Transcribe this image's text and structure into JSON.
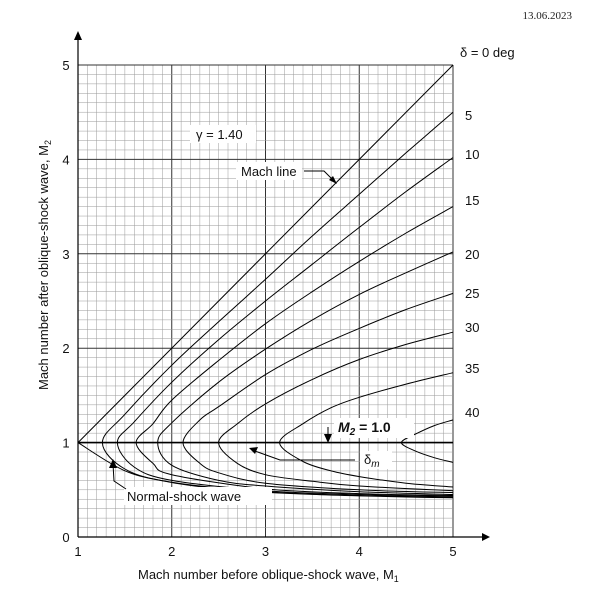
{
  "header": {
    "date": "13.06.2023"
  },
  "chart_data": {
    "type": "line",
    "title": "",
    "xlabel": "Mach number before oblique-shock wave, M",
    "xlabel_sub": "1",
    "ylabel": "Mach number after oblique-shock wave, M",
    "ylabel_sub": "2",
    "xlim": [
      1,
      5
    ],
    "ylim": [
      0,
      5
    ],
    "x_ticks": [
      "1",
      "2",
      "3",
      "4",
      "5"
    ],
    "y_ticks": [
      "0",
      "1",
      "2",
      "3",
      "4",
      "5"
    ],
    "grid": true,
    "minor_grid_per_major": 10,
    "gamma_label": "γ = 1.40",
    "delta_labels": [
      "δ = 0 deg",
      "5",
      "10",
      "15",
      "20",
      "25",
      "30",
      "35",
      "40"
    ],
    "delta_values": [
      0,
      5,
      10,
      15,
      20,
      25,
      30,
      35,
      40
    ],
    "annotations": {
      "mach_line": "Mach line",
      "normal_shock": "Normal-shock wave",
      "m2_label": "M",
      "m2_sub": "2",
      "m2_value": " = 1.0",
      "delta_m": "δ",
      "delta_m_sub": "m"
    },
    "series": [
      {
        "name": "Mach line",
        "kind": "mach_line",
        "x": [
          1,
          5
        ],
        "y": [
          1,
          5
        ]
      },
      {
        "name": "Normal-shock wave",
        "kind": "normal_shock",
        "x": [
          1,
          1.5,
          2,
          2.5,
          3,
          3.5,
          4,
          4.5,
          5
        ],
        "y": [
          1,
          0.701,
          0.577,
          0.513,
          0.475,
          0.451,
          0.435,
          0.424,
          0.415
        ]
      },
      {
        "name": "M2 = 1.0",
        "kind": "sonic",
        "x": [
          1,
          5
        ],
        "y": [
          1,
          1
        ]
      }
    ],
    "deflection_curves": [
      {
        "delta": 5,
        "min_x": 1.26,
        "weak": [
          [
            1.26,
            1
          ],
          [
            1.5,
            1.3
          ],
          [
            2,
            1.82
          ],
          [
            2.5,
            2.28
          ],
          [
            3,
            2.73
          ],
          [
            3.5,
            3.19
          ],
          [
            4,
            3.63
          ],
          [
            4.5,
            4.07
          ],
          [
            5,
            4.5
          ]
        ],
        "strong": [
          [
            1.26,
            1
          ],
          [
            1.5,
            0.72
          ],
          [
            2,
            0.58
          ],
          [
            3,
            0.48
          ],
          [
            4,
            0.44
          ],
          [
            5,
            0.42
          ]
        ]
      },
      {
        "delta": 10,
        "min_x": 1.42,
        "weak": [
          [
            1.42,
            1
          ],
          [
            1.6,
            1.22
          ],
          [
            2,
            1.64
          ],
          [
            2.5,
            2.09
          ],
          [
            3,
            2.5
          ],
          [
            3.5,
            2.89
          ],
          [
            4,
            3.28
          ],
          [
            4.5,
            3.66
          ],
          [
            5,
            4.02
          ]
        ],
        "strong": [
          [
            1.42,
            1
          ],
          [
            1.6,
            0.74
          ],
          [
            2,
            0.6
          ],
          [
            3,
            0.49
          ],
          [
            4,
            0.45
          ],
          [
            5,
            0.43
          ]
        ]
      },
      {
        "delta": 15,
        "min_x": 1.62,
        "weak": [
          [
            1.62,
            1
          ],
          [
            1.8,
            1.2
          ],
          [
            2,
            1.45
          ],
          [
            2.5,
            1.87
          ],
          [
            3,
            2.26
          ],
          [
            3.5,
            2.6
          ],
          [
            4,
            2.92
          ],
          [
            4.5,
            3.22
          ],
          [
            5,
            3.5
          ]
        ],
        "strong": [
          [
            1.62,
            1
          ],
          [
            1.8,
            0.78
          ],
          [
            2,
            0.66
          ],
          [
            3,
            0.51
          ],
          [
            4,
            0.46
          ],
          [
            5,
            0.44
          ]
        ]
      },
      {
        "delta": 20,
        "min_x": 1.85,
        "weak": [
          [
            1.85,
            1
          ],
          [
            2,
            1.21
          ],
          [
            2.5,
            1.64
          ],
          [
            3,
            1.99
          ],
          [
            3.5,
            2.3
          ],
          [
            4,
            2.57
          ],
          [
            4.5,
            2.8
          ],
          [
            5,
            3.02
          ]
        ],
        "strong": [
          [
            1.85,
            1
          ],
          [
            2,
            0.76
          ],
          [
            2.5,
            0.6
          ],
          [
            3,
            0.54
          ],
          [
            4,
            0.48
          ],
          [
            5,
            0.45
          ]
        ]
      },
      {
        "delta": 25,
        "min_x": 2.12,
        "weak": [
          [
            2.12,
            1
          ],
          [
            2.3,
            1.24
          ],
          [
            2.5,
            1.38
          ],
          [
            3,
            1.72
          ],
          [
            3.5,
            1.99
          ],
          [
            4,
            2.21
          ],
          [
            4.5,
            2.41
          ],
          [
            5,
            2.58
          ]
        ],
        "strong": [
          [
            2.12,
            1
          ],
          [
            2.3,
            0.78
          ],
          [
            2.5,
            0.68
          ],
          [
            3,
            0.57
          ],
          [
            4,
            0.5
          ],
          [
            5,
            0.47
          ]
        ]
      },
      {
        "delta": 30,
        "min_x": 2.5,
        "weak": [
          [
            2.5,
            1
          ],
          [
            2.7,
            1.2
          ],
          [
            3,
            1.41
          ],
          [
            3.5,
            1.67
          ],
          [
            4,
            1.88
          ],
          [
            4.5,
            2.04
          ],
          [
            5,
            2.17
          ]
        ],
        "strong": [
          [
            2.5,
            1
          ],
          [
            2.7,
            0.78
          ],
          [
            3,
            0.66
          ],
          [
            3.5,
            0.59
          ],
          [
            4,
            0.54
          ],
          [
            5,
            0.49
          ]
        ]
      },
      {
        "delta": 35,
        "min_x": 3.15,
        "weak": [
          [
            3.15,
            1
          ],
          [
            3.4,
            1.2
          ],
          [
            3.7,
            1.37
          ],
          [
            4,
            1.48
          ],
          [
            4.5,
            1.62
          ],
          [
            5,
            1.74
          ]
        ],
        "strong": [
          [
            3.15,
            1
          ],
          [
            3.4,
            0.8
          ],
          [
            3.7,
            0.7
          ],
          [
            4,
            0.64
          ],
          [
            4.5,
            0.57
          ],
          [
            5,
            0.53
          ]
        ]
      },
      {
        "delta": 40,
        "min_x": 4.45,
        "weak": [
          [
            4.45,
            1
          ],
          [
            4.6,
            1.09
          ],
          [
            4.8,
            1.18
          ],
          [
            5,
            1.24
          ]
        ],
        "strong": [
          [
            4.45,
            1
          ],
          [
            4.6,
            0.91
          ],
          [
            4.8,
            0.84
          ],
          [
            5,
            0.79
          ]
        ]
      }
    ]
  }
}
